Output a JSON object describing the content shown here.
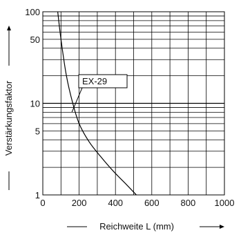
{
  "chart_data": {
    "type": "line",
    "title": "",
    "xlabel": "Reichweite L (mm)",
    "ylabel": "Verstärkungsfaktor",
    "xlim": [
      0,
      1000
    ],
    "ylim": [
      1,
      100
    ],
    "y_scale": "log",
    "grid": true,
    "x_ticks": [
      "0",
      "200",
      "400",
      "600",
      "800",
      "1000"
    ],
    "y_ticks": [
      "1",
      "5",
      "10",
      "50",
      "100"
    ],
    "series": [
      {
        "name": "EX-29",
        "x": [
          82,
          100,
          130,
          165,
          200,
          255,
          320,
          390,
          460,
          515
        ],
        "y": [
          100,
          50,
          20,
          10,
          6,
          3.8,
          2.6,
          1.8,
          1.3,
          1.0
        ]
      }
    ],
    "annotations": [
      {
        "text": "EX-29",
        "target_x": 160,
        "target_y": 8
      }
    ],
    "colors": {
      "line": "#000000",
      "grid": "#000000"
    }
  }
}
